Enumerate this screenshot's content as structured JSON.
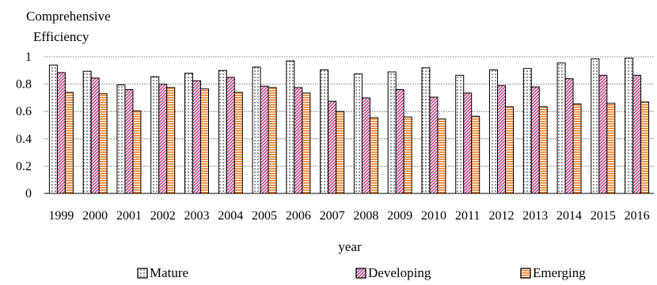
{
  "chart_data": {
    "type": "bar",
    "title": "",
    "ylabel": "Comprehensive Efficiency",
    "ylabel_lines": [
      "Comprehensive",
      "Efficiency"
    ],
    "xlabel": "year",
    "ylim": [
      0,
      1
    ],
    "yticks": [
      0,
      0.2,
      0.4,
      0.6,
      0.8,
      1
    ],
    "ytick_labels": [
      "0",
      "0.2",
      "0.4",
      "0.6",
      "0.8",
      "1"
    ],
    "grid": "horizontal-dotted",
    "legend_position": "bottom",
    "categories": [
      "1999",
      "2000",
      "2001",
      "2002",
      "2003",
      "2004",
      "2005",
      "2006",
      "2007",
      "2008",
      "2009",
      "2010",
      "2011",
      "2012",
      "2013",
      "2014",
      "2015",
      "2016"
    ],
    "series": [
      {
        "name": "Mature",
        "pattern": "dots",
        "color": "#000000",
        "values": [
          0.94,
          0.895,
          0.795,
          0.855,
          0.88,
          0.9,
          0.925,
          0.97,
          0.905,
          0.875,
          0.89,
          0.92,
          0.865,
          0.905,
          0.915,
          0.955,
          0.985,
          0.99
        ]
      },
      {
        "name": "Developing",
        "pattern": "diagonal",
        "color": "#b5307a",
        "values": [
          0.885,
          0.845,
          0.76,
          0.8,
          0.825,
          0.85,
          0.785,
          0.775,
          0.675,
          0.7,
          0.76,
          0.705,
          0.735,
          0.79,
          0.78,
          0.84,
          0.865,
          0.865
        ]
      },
      {
        "name": "Emerging",
        "pattern": "horizontal",
        "color": "#f07b1e",
        "values": [
          0.74,
          0.73,
          0.605,
          0.775,
          0.765,
          0.74,
          0.775,
          0.735,
          0.6,
          0.555,
          0.56,
          0.545,
          0.565,
          0.635,
          0.635,
          0.655,
          0.66,
          0.67
        ]
      }
    ]
  }
}
